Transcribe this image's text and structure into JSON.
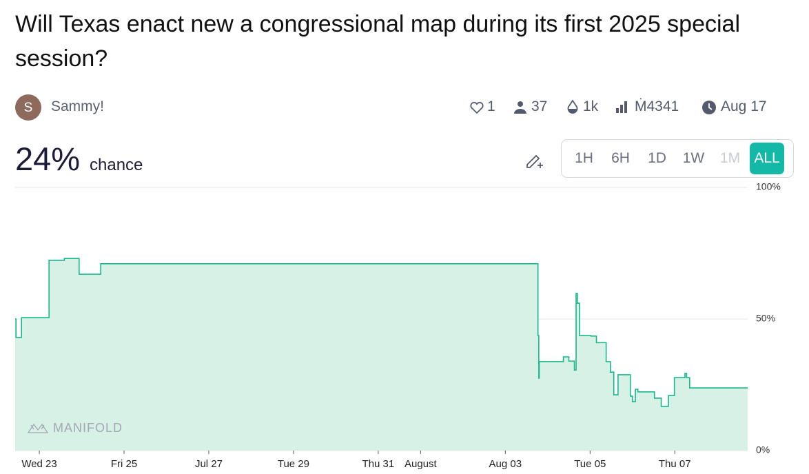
{
  "header": {
    "title": "Will Texas enact new a congressional map during its first 2025 special session?",
    "author": "Sammy!",
    "avatar_letter": "S",
    "stats": {
      "likes": "1",
      "traders": "37",
      "liquidity": "1k",
      "volume": "Ṁ4341",
      "close_date": "Aug 17"
    }
  },
  "probability": {
    "value": "24%",
    "label": "chance"
  },
  "time_ranges": [
    "1H",
    "6H",
    "1D",
    "1W",
    "1M",
    "ALL"
  ],
  "chart_data": {
    "type": "line",
    "step": true,
    "x": [
      -0.57,
      -0.55,
      -0.42,
      0.23,
      0.59,
      0.94,
      1.45,
      11.77,
      11.79,
      11.8,
      12.37,
      12.5,
      12.63,
      12.67,
      12.7,
      12.75,
      13.02,
      13.15,
      13.38,
      13.48,
      13.56,
      13.66,
      13.95,
      14.0,
      14.07,
      14.13,
      14.52,
      14.68,
      14.85,
      14.99,
      15.24,
      15.28,
      15.35,
      16.72
    ],
    "values": [
      50,
      43,
      50.5,
      72.3,
      73,
      67,
      71,
      43.7,
      27.5,
      33.8,
      35.6,
      34,
      30.6,
      59.7,
      56,
      43.7,
      43.5,
      41,
      33.8,
      29.8,
      21.2,
      28.8,
      20.7,
      18.6,
      23.3,
      22.3,
      19.9,
      16.8,
      20.9,
      27.7,
      29.3,
      27.7,
      23.8,
      23.8
    ],
    "color": "#14b88a",
    "fill": "#d8f1e6",
    "xlim": [
      -0.57,
      16.72
    ],
    "xticks": [
      {
        "value": 0,
        "label": "Wed 23"
      },
      {
        "value": 2,
        "label": "Fri 25"
      },
      {
        "value": 4,
        "label": "Jul 27"
      },
      {
        "value": 6,
        "label": "Tue 29"
      },
      {
        "value": 8,
        "label": "Thu 31"
      },
      {
        "value": 9,
        "label": "August"
      },
      {
        "value": 11,
        "label": "Aug 03"
      },
      {
        "value": 13,
        "label": "Tue 05"
      },
      {
        "value": 15,
        "label": "Thu 07"
      }
    ],
    "ylim": [
      0,
      100
    ],
    "yticks": [
      {
        "value": 0,
        "label": "0%"
      },
      {
        "value": 50,
        "label": "50%"
      },
      {
        "value": 100,
        "label": "100%"
      }
    ],
    "grid": true,
    "watermark": "MANIFOLD"
  }
}
